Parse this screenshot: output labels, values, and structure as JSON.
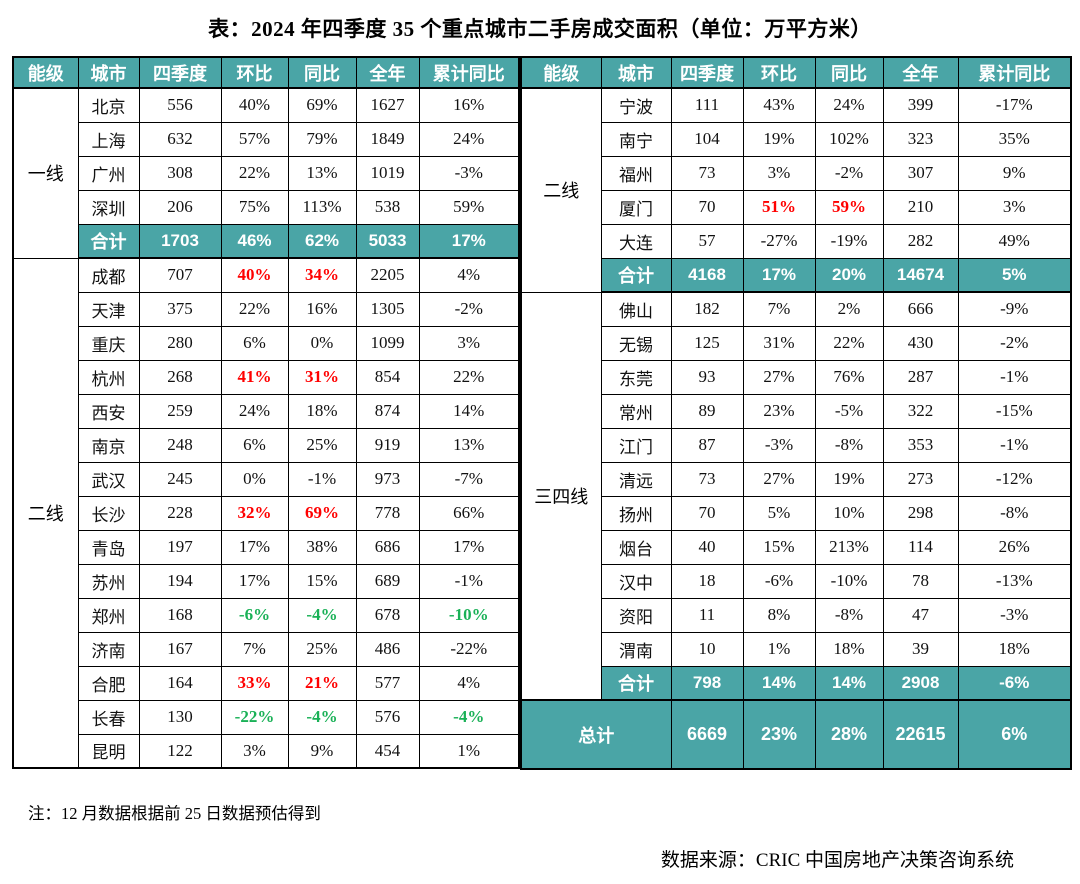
{
  "page": {
    "note": "注：12 月数据根据前 25 日数据预估得到",
    "source": "数据来源：CRIC 中国房地产决策咨询系统"
  },
  "colors": {
    "teal": "#4aa5a6",
    "red": "#ff0000",
    "green": "#1ab157"
  },
  "chart_data": {
    "type": "table",
    "title": "表：2024 年四季度 35 个重点城市二手房成交面积（单位：万平方米）",
    "unit": "万平方米",
    "columns": [
      "能级",
      "城市",
      "四季度",
      "环比",
      "同比",
      "全年",
      "累计同比"
    ],
    "left_table": {
      "sections": [
        {
          "tier": "一线",
          "rows": [
            {
              "city": "北京",
              "q4": "556",
              "qoq": "40%",
              "yoy": "69%",
              "year": "1627",
              "cum": "16%"
            },
            {
              "city": "上海",
              "q4": "632",
              "qoq": "57%",
              "yoy": "79%",
              "year": "1849",
              "cum": "24%"
            },
            {
              "city": "广州",
              "q4": "308",
              "qoq": "22%",
              "yoy": "13%",
              "year": "1019",
              "cum": "-3%"
            },
            {
              "city": "深圳",
              "q4": "206",
              "qoq": "75%",
              "yoy": "113%",
              "year": "538",
              "cum": "59%"
            }
          ],
          "subtotal": {
            "city": "合计",
            "q4": "1703",
            "qoq": "46%",
            "yoy": "62%",
            "year": "5033",
            "cum": "17%"
          }
        },
        {
          "tier": "二线",
          "rows": [
            {
              "city": "成都",
              "q4": "707",
              "qoq": "40%",
              "yoy": "34%",
              "year": "2205",
              "cum": "4%",
              "qoq_c": "red",
              "yoy_c": "red"
            },
            {
              "city": "天津",
              "q4": "375",
              "qoq": "22%",
              "yoy": "16%",
              "year": "1305",
              "cum": "-2%"
            },
            {
              "city": "重庆",
              "q4": "280",
              "qoq": "6%",
              "yoy": "0%",
              "year": "1099",
              "cum": "3%"
            },
            {
              "city": "杭州",
              "q4": "268",
              "qoq": "41%",
              "yoy": "31%",
              "year": "854",
              "cum": "22%",
              "qoq_c": "red",
              "yoy_c": "red"
            },
            {
              "city": "西安",
              "q4": "259",
              "qoq": "24%",
              "yoy": "18%",
              "year": "874",
              "cum": "14%"
            },
            {
              "city": "南京",
              "q4": "248",
              "qoq": "6%",
              "yoy": "25%",
              "year": "919",
              "cum": "13%"
            },
            {
              "city": "武汉",
              "q4": "245",
              "qoq": "0%",
              "yoy": "-1%",
              "year": "973",
              "cum": "-7%"
            },
            {
              "city": "长沙",
              "q4": "228",
              "qoq": "32%",
              "yoy": "69%",
              "year": "778",
              "cum": "66%",
              "qoq_c": "red",
              "yoy_c": "red"
            },
            {
              "city": "青岛",
              "q4": "197",
              "qoq": "17%",
              "yoy": "38%",
              "year": "686",
              "cum": "17%"
            },
            {
              "city": "苏州",
              "q4": "194",
              "qoq": "17%",
              "yoy": "15%",
              "year": "689",
              "cum": "-1%"
            },
            {
              "city": "郑州",
              "q4": "168",
              "qoq": "-6%",
              "yoy": "-4%",
              "year": "678",
              "cum": "-10%",
              "qoq_c": "green",
              "yoy_c": "green",
              "cum_c": "green"
            },
            {
              "city": "济南",
              "q4": "167",
              "qoq": "7%",
              "yoy": "25%",
              "year": "486",
              "cum": "-22%"
            },
            {
              "city": "合肥",
              "q4": "164",
              "qoq": "33%",
              "yoy": "21%",
              "year": "577",
              "cum": "4%",
              "qoq_c": "red",
              "yoy_c": "red"
            },
            {
              "city": "长春",
              "q4": "130",
              "qoq": "-22%",
              "yoy": "-4%",
              "year": "576",
              "cum": "-4%",
              "qoq_c": "green",
              "yoy_c": "green",
              "cum_c": "green"
            },
            {
              "city": "昆明",
              "q4": "122",
              "qoq": "3%",
              "yoy": "9%",
              "year": "454",
              "cum": "1%"
            }
          ]
        }
      ]
    },
    "right_table": {
      "sections": [
        {
          "tier": "二线",
          "rows": [
            {
              "city": "宁波",
              "q4": "111",
              "qoq": "43%",
              "yoy": "24%",
              "year": "399",
              "cum": "-17%"
            },
            {
              "city": "南宁",
              "q4": "104",
              "qoq": "19%",
              "yoy": "102%",
              "year": "323",
              "cum": "35%"
            },
            {
              "city": "福州",
              "q4": "73",
              "qoq": "3%",
              "yoy": "-2%",
              "year": "307",
              "cum": "9%"
            },
            {
              "city": "厦门",
              "q4": "70",
              "qoq": "51%",
              "yoy": "59%",
              "year": "210",
              "cum": "3%",
              "qoq_c": "red",
              "yoy_c": "red"
            },
            {
              "city": "大连",
              "q4": "57",
              "qoq": "-27%",
              "yoy": "-19%",
              "year": "282",
              "cum": "49%"
            }
          ],
          "subtotal": {
            "city": "合计",
            "q4": "4168",
            "qoq": "17%",
            "yoy": "20%",
            "year": "14674",
            "cum": "5%"
          }
        },
        {
          "tier": "三四线",
          "rows": [
            {
              "city": "佛山",
              "q4": "182",
              "qoq": "7%",
              "yoy": "2%",
              "year": "666",
              "cum": "-9%"
            },
            {
              "city": "无锡",
              "q4": "125",
              "qoq": "31%",
              "yoy": "22%",
              "year": "430",
              "cum": "-2%"
            },
            {
              "city": "东莞",
              "q4": "93",
              "qoq": "27%",
              "yoy": "76%",
              "year": "287",
              "cum": "-1%"
            },
            {
              "city": "常州",
              "q4": "89",
              "qoq": "23%",
              "yoy": "-5%",
              "year": "322",
              "cum": "-15%"
            },
            {
              "city": "江门",
              "q4": "87",
              "qoq": "-3%",
              "yoy": "-8%",
              "year": "353",
              "cum": "-1%"
            },
            {
              "city": "清远",
              "q4": "73",
              "qoq": "27%",
              "yoy": "19%",
              "year": "273",
              "cum": "-12%"
            },
            {
              "city": "扬州",
              "q4": "70",
              "qoq": "5%",
              "yoy": "10%",
              "year": "298",
              "cum": "-8%"
            },
            {
              "city": "烟台",
              "q4": "40",
              "qoq": "15%",
              "yoy": "213%",
              "year": "114",
              "cum": "26%"
            },
            {
              "city": "汉中",
              "q4": "18",
              "qoq": "-6%",
              "yoy": "-10%",
              "year": "78",
              "cum": "-13%"
            },
            {
              "city": "资阳",
              "q4": "11",
              "qoq": "8%",
              "yoy": "-8%",
              "year": "47",
              "cum": "-3%"
            },
            {
              "city": "渭南",
              "q4": "10",
              "qoq": "1%",
              "yoy": "18%",
              "year": "39",
              "cum": "18%"
            }
          ],
          "subtotal": {
            "city": "合计",
            "q4": "798",
            "qoq": "14%",
            "yoy": "14%",
            "year": "2908",
            "cum": "-6%"
          }
        }
      ],
      "total": {
        "label": "总计",
        "q4": "6669",
        "qoq": "23%",
        "yoy": "28%",
        "year": "22615",
        "cum": "6%"
      }
    }
  }
}
